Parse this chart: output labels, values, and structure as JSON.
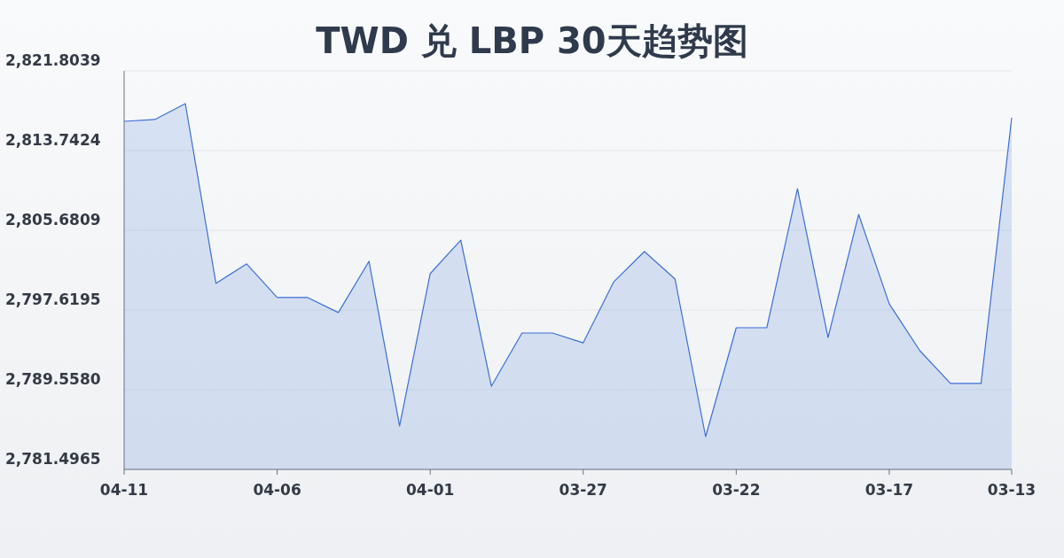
{
  "chart_data": {
    "type": "area",
    "title": "TWD 兑 LBP 30天趋势图",
    "categories": [
      "04-11",
      null,
      null,
      null,
      null,
      "04-06",
      null,
      null,
      null,
      null,
      "04-01",
      null,
      null,
      null,
      null,
      "03-27",
      null,
      null,
      null,
      null,
      "03-22",
      null,
      null,
      null,
      null,
      "03-17",
      null,
      null,
      null,
      "03-13"
    ],
    "series": [
      {
        "color": "#3b6fd6",
        "values": [
          2816.7,
          2816.88,
          2818.49,
          2800.31,
          2802.28,
          2798.88,
          2798.88,
          2797.36,
          2802.55,
          2785.89,
          2801.29,
          2804.69,
          2789.91,
          2795.29,
          2795.29,
          2794.3,
          2800.48,
          2803.53,
          2800.75,
          2784.81,
          2795.83,
          2795.83,
          2809.89,
          2794.84,
          2807.29,
          2798.24,
          2793.5,
          2790.19,
          2790.19,
          2817.06
        ]
      }
    ],
    "ylim": [
      2781.4965,
      2821.8039
    ],
    "yticks": [
      {
        "value": 2781.4965,
        "label": "2,781.4965"
      },
      {
        "value": 2789.558,
        "label": "2,789.5580"
      },
      {
        "value": 2797.6195,
        "label": "2,797.6195"
      },
      {
        "value": 2805.6809,
        "label": "2,805.6809"
      },
      {
        "value": 2813.7424,
        "label": "2,813.7424"
      },
      {
        "value": 2821.8039,
        "label": "2,821.8039"
      }
    ],
    "grid": "y"
  }
}
